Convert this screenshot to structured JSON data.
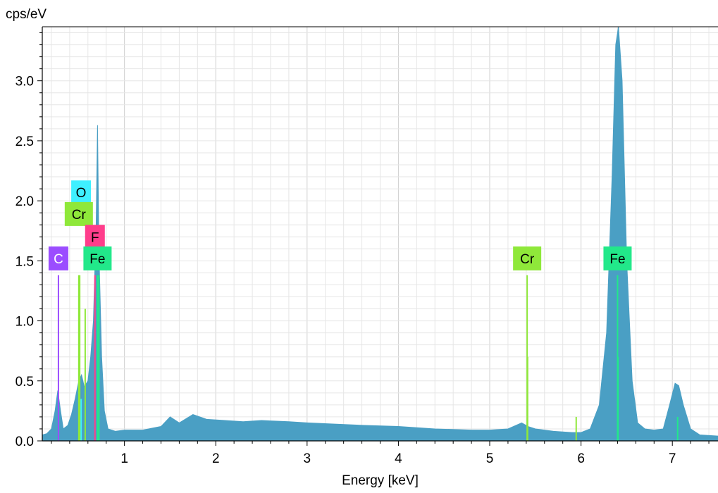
{
  "chart_data": {
    "type": "area",
    "title": "",
    "ylabel": "cps/eV",
    "xlabel": "Energy [keV]",
    "xlim": [
      0.1,
      7.5
    ],
    "ylim": [
      0,
      3.45
    ],
    "x_ticks": [
      "1",
      "2",
      "3",
      "4",
      "5",
      "6",
      "7"
    ],
    "y_ticks": [
      "0.0",
      "0.5",
      "1.0",
      "1.5",
      "2.0",
      "2.5",
      "3.0"
    ],
    "grid": true,
    "spectrum": {
      "color": "#4a9fc4",
      "x": [
        0.1,
        0.15,
        0.2,
        0.24,
        0.27,
        0.3,
        0.33,
        0.38,
        0.42,
        0.46,
        0.5,
        0.53,
        0.56,
        0.6,
        0.63,
        0.66,
        0.69,
        0.705,
        0.72,
        0.75,
        0.78,
        0.82,
        0.9,
        1.0,
        1.2,
        1.4,
        1.5,
        1.6,
        1.75,
        1.9,
        2.1,
        2.3,
        2.5,
        2.8,
        3.0,
        3.3,
        3.6,
        4.0,
        4.4,
        4.8,
        5.0,
        5.2,
        5.35,
        5.42,
        5.5,
        5.7,
        5.9,
        6.0,
        6.1,
        6.2,
        6.28,
        6.34,
        6.38,
        6.41,
        6.45,
        6.5,
        6.56,
        6.62,
        6.7,
        6.8,
        6.9,
        6.97,
        7.03,
        7.07,
        7.12,
        7.2,
        7.3,
        7.5
      ],
      "y": [
        0.05,
        0.06,
        0.1,
        0.25,
        0.42,
        0.25,
        0.1,
        0.13,
        0.22,
        0.35,
        0.5,
        0.55,
        0.45,
        0.5,
        0.7,
        1.0,
        1.8,
        2.63,
        1.6,
        0.7,
        0.25,
        0.1,
        0.08,
        0.09,
        0.09,
        0.12,
        0.2,
        0.15,
        0.22,
        0.18,
        0.17,
        0.16,
        0.17,
        0.16,
        0.15,
        0.14,
        0.13,
        0.12,
        0.1,
        0.09,
        0.09,
        0.1,
        0.15,
        0.12,
        0.1,
        0.08,
        0.07,
        0.07,
        0.1,
        0.3,
        0.9,
        2.2,
        3.3,
        3.45,
        3.0,
        1.5,
        0.5,
        0.15,
        0.1,
        0.09,
        0.1,
        0.3,
        0.48,
        0.46,
        0.3,
        0.1,
        0.05,
        0.04
      ]
    },
    "element_lines": [
      {
        "energy": 0.277,
        "height": 1.38,
        "color": "#9b4dff"
      },
      {
        "energy": 0.525,
        "height": 0.35,
        "color": "#3ff0ff"
      },
      {
        "energy": 0.5,
        "height": 1.38,
        "color": "#8fe83a"
      },
      {
        "energy": 0.51,
        "height": 1.38,
        "color": "#8fe83a"
      },
      {
        "energy": 0.57,
        "height": 1.1,
        "color": "#8fe83a"
      },
      {
        "energy": 0.677,
        "height": 1.38,
        "color": "#ff3d8b"
      },
      {
        "energy": 0.705,
        "height": 1.38,
        "color": "#22e88a"
      },
      {
        "energy": 0.72,
        "height": 1.38,
        "color": "#22e88a"
      },
      {
        "energy": 5.41,
        "height": 1.38,
        "color": "#8fe83a"
      },
      {
        "energy": 5.415,
        "height": 0.7,
        "color": "#8fe83a"
      },
      {
        "energy": 5.947,
        "height": 0.2,
        "color": "#8fe83a"
      },
      {
        "energy": 6.4,
        "height": 1.38,
        "color": "#22e88a"
      },
      {
        "energy": 6.405,
        "height": 0.7,
        "color": "#22e88a"
      },
      {
        "energy": 7.058,
        "height": 0.2,
        "color": "#22e88a"
      }
    ],
    "element_labels": [
      {
        "text": "C",
        "energy": 0.277,
        "y": 1.52,
        "color": "#9b4dff",
        "text_color": "#ffffff"
      },
      {
        "text": "O",
        "energy": 0.525,
        "y": 2.07,
        "color": "#3ff0ff",
        "text_color": "#000000"
      },
      {
        "text": "Cr",
        "energy": 0.5,
        "y": 1.89,
        "color": "#8fe83a",
        "text_color": "#000000"
      },
      {
        "text": "F",
        "energy": 0.677,
        "y": 1.7,
        "color": "#ff3d8b",
        "text_color": "#000000"
      },
      {
        "text": "Fe",
        "energy": 0.705,
        "y": 1.52,
        "color": "#22e88a",
        "text_color": "#000000"
      },
      {
        "text": "Cr",
        "energy": 5.41,
        "y": 1.52,
        "color": "#8fe83a",
        "text_color": "#000000"
      },
      {
        "text": "Fe",
        "energy": 6.4,
        "y": 1.52,
        "color": "#22e88a",
        "text_color": "#000000"
      }
    ]
  }
}
